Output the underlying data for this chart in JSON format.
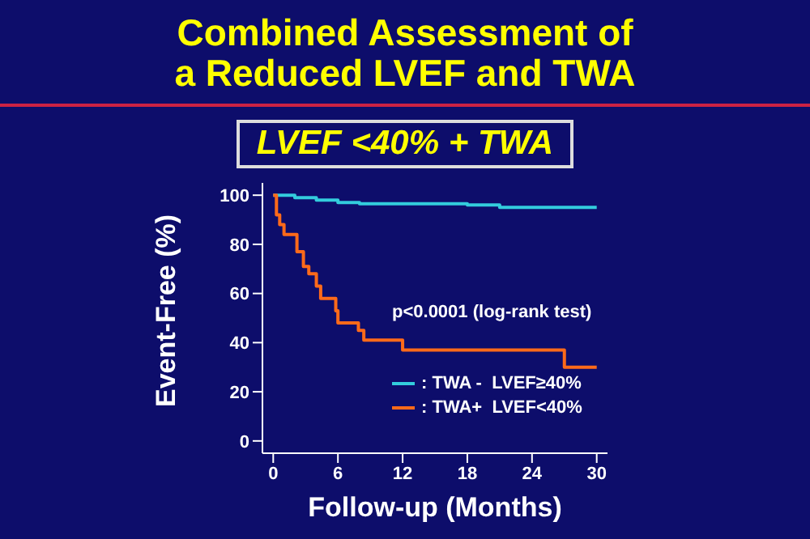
{
  "chart_data": {
    "type": "step",
    "title": "Combined Assessment of\na Reduced LVEF and TWA",
    "subtitle": "LVEF <40% + TWA",
    "xlabel": "Follow-up (Months)",
    "ylabel": "Event-Free (%)",
    "series": [
      {
        "name": ": TWA -  LVEF≥40%",
        "color": "#33ccdd",
        "x": [
          0,
          2,
          4,
          6,
          8,
          18,
          21,
          30
        ],
        "values": [
          100,
          99,
          98,
          97,
          96.5,
          96,
          95,
          95
        ]
      },
      {
        "name": ": TWA+  LVEF<40%",
        "color": "#ff6a1a",
        "x": [
          0,
          0.3,
          0.6,
          1,
          2.2,
          2.8,
          3.3,
          4,
          4.4,
          5.8,
          6,
          7.9,
          8.4,
          12,
          27,
          30
        ],
        "values": [
          100,
          92,
          88,
          84,
          77,
          71,
          68,
          63,
          58,
          53,
          48,
          45,
          41,
          37,
          30,
          30
        ]
      }
    ],
    "xlim": [
      -1,
      31
    ],
    "xticks": [
      0,
      6,
      12,
      18,
      24,
      30
    ],
    "ylim": [
      -5,
      105
    ],
    "yticks": [
      0,
      20,
      40,
      60,
      80,
      100
    ],
    "legend": "bottom right",
    "marker": "none",
    "line_style": "solid",
    "annotations": [
      "p<0.0001 (log-rank test)"
    ]
  }
}
